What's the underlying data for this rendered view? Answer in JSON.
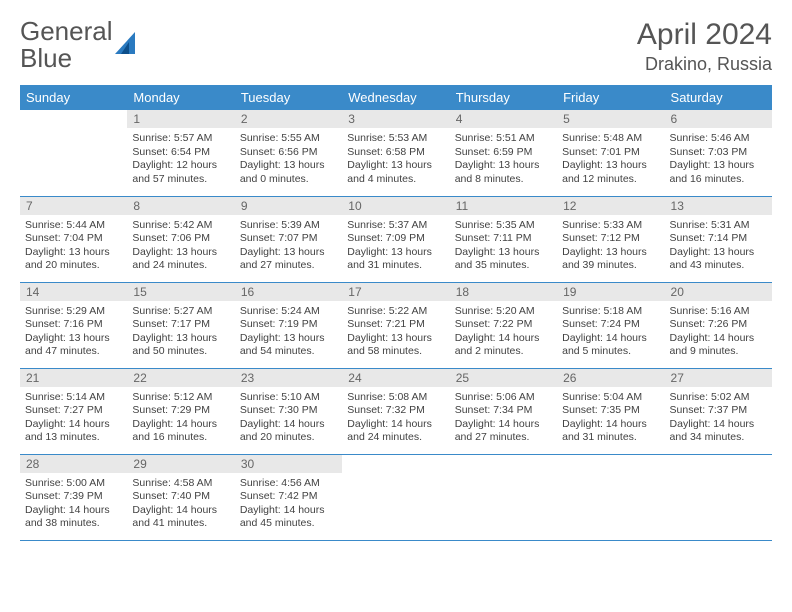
{
  "branding": {
    "logo_text_a": "General",
    "logo_text_b": "Blue",
    "logo_text_color": "#555555",
    "logo_accent_color": "#2a7ac0"
  },
  "header": {
    "month_title": "April 2024",
    "location": "Drakino, Russia",
    "title_color": "#555555"
  },
  "colors": {
    "header_bg": "#3a8ac9",
    "header_fg": "#ffffff",
    "daynum_bg": "#e8e8e8",
    "daynum_fg": "#666666",
    "cell_border": "#3a8ac9",
    "body_text": "#424242",
    "page_bg": "#ffffff"
  },
  "typography": {
    "title_fontsize": 30,
    "location_fontsize": 18,
    "dayheader_fontsize": 13,
    "daynum_fontsize": 12,
    "cell_fontsize": 10.5
  },
  "calendar": {
    "type": "table",
    "day_headers": [
      "Sunday",
      "Monday",
      "Tuesday",
      "Wednesday",
      "Thursday",
      "Friday",
      "Saturday"
    ],
    "weeks": [
      [
        null,
        {
          "n": "1",
          "sunrise": "5:57 AM",
          "sunset": "6:54 PM",
          "daylight": "12 hours and 57 minutes."
        },
        {
          "n": "2",
          "sunrise": "5:55 AM",
          "sunset": "6:56 PM",
          "daylight": "13 hours and 0 minutes."
        },
        {
          "n": "3",
          "sunrise": "5:53 AM",
          "sunset": "6:58 PM",
          "daylight": "13 hours and 4 minutes."
        },
        {
          "n": "4",
          "sunrise": "5:51 AM",
          "sunset": "6:59 PM",
          "daylight": "13 hours and 8 minutes."
        },
        {
          "n": "5",
          "sunrise": "5:48 AM",
          "sunset": "7:01 PM",
          "daylight": "13 hours and 12 minutes."
        },
        {
          "n": "6",
          "sunrise": "5:46 AM",
          "sunset": "7:03 PM",
          "daylight": "13 hours and 16 minutes."
        }
      ],
      [
        {
          "n": "7",
          "sunrise": "5:44 AM",
          "sunset": "7:04 PM",
          "daylight": "13 hours and 20 minutes."
        },
        {
          "n": "8",
          "sunrise": "5:42 AM",
          "sunset": "7:06 PM",
          "daylight": "13 hours and 24 minutes."
        },
        {
          "n": "9",
          "sunrise": "5:39 AM",
          "sunset": "7:07 PM",
          "daylight": "13 hours and 27 minutes."
        },
        {
          "n": "10",
          "sunrise": "5:37 AM",
          "sunset": "7:09 PM",
          "daylight": "13 hours and 31 minutes."
        },
        {
          "n": "11",
          "sunrise": "5:35 AM",
          "sunset": "7:11 PM",
          "daylight": "13 hours and 35 minutes."
        },
        {
          "n": "12",
          "sunrise": "5:33 AM",
          "sunset": "7:12 PM",
          "daylight": "13 hours and 39 minutes."
        },
        {
          "n": "13",
          "sunrise": "5:31 AM",
          "sunset": "7:14 PM",
          "daylight": "13 hours and 43 minutes."
        }
      ],
      [
        {
          "n": "14",
          "sunrise": "5:29 AM",
          "sunset": "7:16 PM",
          "daylight": "13 hours and 47 minutes."
        },
        {
          "n": "15",
          "sunrise": "5:27 AM",
          "sunset": "7:17 PM",
          "daylight": "13 hours and 50 minutes."
        },
        {
          "n": "16",
          "sunrise": "5:24 AM",
          "sunset": "7:19 PM",
          "daylight": "13 hours and 54 minutes."
        },
        {
          "n": "17",
          "sunrise": "5:22 AM",
          "sunset": "7:21 PM",
          "daylight": "13 hours and 58 minutes."
        },
        {
          "n": "18",
          "sunrise": "5:20 AM",
          "sunset": "7:22 PM",
          "daylight": "14 hours and 2 minutes."
        },
        {
          "n": "19",
          "sunrise": "5:18 AM",
          "sunset": "7:24 PM",
          "daylight": "14 hours and 5 minutes."
        },
        {
          "n": "20",
          "sunrise": "5:16 AM",
          "sunset": "7:26 PM",
          "daylight": "14 hours and 9 minutes."
        }
      ],
      [
        {
          "n": "21",
          "sunrise": "5:14 AM",
          "sunset": "7:27 PM",
          "daylight": "14 hours and 13 minutes."
        },
        {
          "n": "22",
          "sunrise": "5:12 AM",
          "sunset": "7:29 PM",
          "daylight": "14 hours and 16 minutes."
        },
        {
          "n": "23",
          "sunrise": "5:10 AM",
          "sunset": "7:30 PM",
          "daylight": "14 hours and 20 minutes."
        },
        {
          "n": "24",
          "sunrise": "5:08 AM",
          "sunset": "7:32 PM",
          "daylight": "14 hours and 24 minutes."
        },
        {
          "n": "25",
          "sunrise": "5:06 AM",
          "sunset": "7:34 PM",
          "daylight": "14 hours and 27 minutes."
        },
        {
          "n": "26",
          "sunrise": "5:04 AM",
          "sunset": "7:35 PM",
          "daylight": "14 hours and 31 minutes."
        },
        {
          "n": "27",
          "sunrise": "5:02 AM",
          "sunset": "7:37 PM",
          "daylight": "14 hours and 34 minutes."
        }
      ],
      [
        {
          "n": "28",
          "sunrise": "5:00 AM",
          "sunset": "7:39 PM",
          "daylight": "14 hours and 38 minutes."
        },
        {
          "n": "29",
          "sunrise": "4:58 AM",
          "sunset": "7:40 PM",
          "daylight": "14 hours and 41 minutes."
        },
        {
          "n": "30",
          "sunrise": "4:56 AM",
          "sunset": "7:42 PM",
          "daylight": "14 hours and 45 minutes."
        },
        null,
        null,
        null,
        null
      ]
    ],
    "labels": {
      "sunrise_prefix": "Sunrise: ",
      "sunset_prefix": "Sunset: ",
      "daylight_prefix": "Daylight: "
    }
  }
}
